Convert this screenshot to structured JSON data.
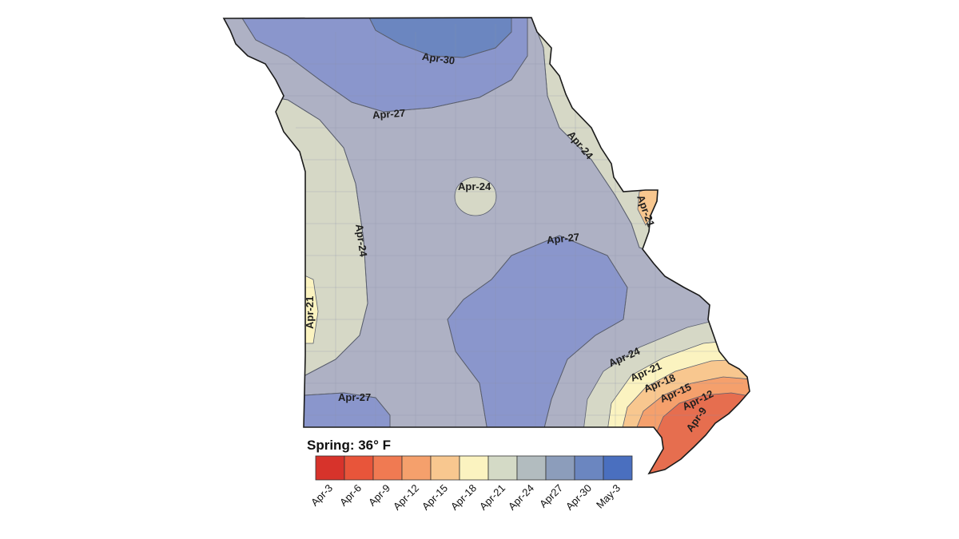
{
  "map": {
    "title": "Spring: 36° F",
    "region": "Missouri",
    "contour_labels": [
      {
        "id": "north-apr30",
        "text": "Apr-30"
      },
      {
        "id": "north-apr27",
        "text": "Apr-27"
      },
      {
        "id": "east-apr24",
        "text": "Apr-24"
      },
      {
        "id": "east-apr21",
        "text": "Apr-21"
      },
      {
        "id": "center-apr24",
        "text": "Apr-24"
      },
      {
        "id": "west-apr24",
        "text": "Apr-24"
      },
      {
        "id": "west-apr21",
        "text": "Apr-21"
      },
      {
        "id": "south-apr27",
        "text": "Apr-27"
      },
      {
        "id": "sw-apr27",
        "text": "Apr-27"
      },
      {
        "id": "se-apr24",
        "text": "Apr-24"
      },
      {
        "id": "se-apr21",
        "text": "Apr-21"
      },
      {
        "id": "se-apr18",
        "text": "Apr-18"
      },
      {
        "id": "se-apr15",
        "text": "Apr-15"
      },
      {
        "id": "se-apr12",
        "text": "Apr-12"
      },
      {
        "id": "se-apr9",
        "text": "Apr-9"
      }
    ]
  },
  "legend": {
    "title": "Spring: 36° F",
    "bins": [
      {
        "label": "Apr-3",
        "color": "#d7332b"
      },
      {
        "label": "Apr-6",
        "color": "#e8553a"
      },
      {
        "label": "Apr-9",
        "color": "#f07a52"
      },
      {
        "label": "Apr-12",
        "color": "#f5a06c"
      },
      {
        "label": "Apr-15",
        "color": "#f8c78f"
      },
      {
        "label": "Apr-18",
        "color": "#fbf3c0"
      },
      {
        "label": "Apr-21",
        "color": "#d4dac6"
      },
      {
        "label": "Apr-24",
        "color": "#b2bcbf"
      },
      {
        "label": "Apr27",
        "color": "#8c9dbb"
      },
      {
        "label": "Apr-30",
        "color": "#6b86c0"
      },
      {
        "label": "May-3",
        "color": "#4a6fbf"
      }
    ]
  },
  "colors": {
    "apr30": "#6b86c0",
    "apr27": "#8a96cc",
    "apr24": "#aeb1c4",
    "apr21": "#d6d8c6",
    "apr18": "#fbf3c0",
    "apr15": "#f8c78f",
    "apr12": "#f5a06c",
    "apr9": "#e66e4f",
    "outline": "#1a1a1a"
  }
}
